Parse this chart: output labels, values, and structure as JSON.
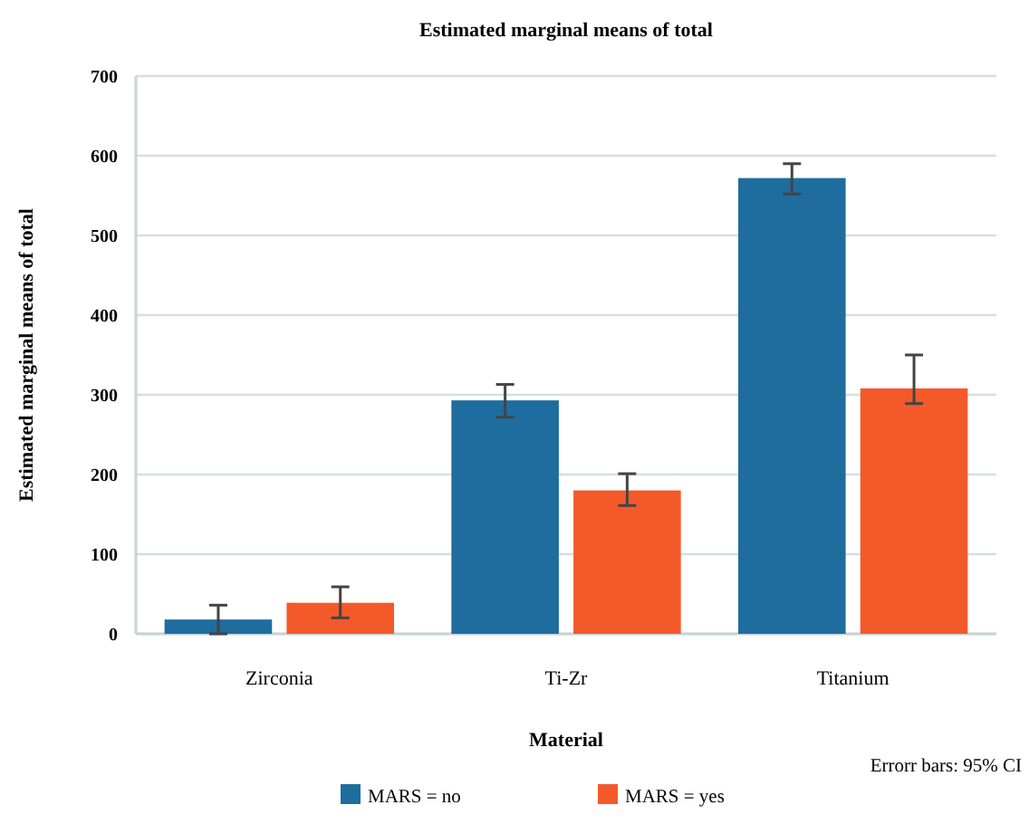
{
  "chart_data": {
    "type": "bar",
    "title": "Estimated marginal means of total",
    "xlabel": "Material",
    "ylabel": "Estimated marginal means of total",
    "annotations": [
      "Errorr bars: 95% CI"
    ],
    "categories": [
      "Zirconia",
      "Ti-Zr",
      "Titanium"
    ],
    "series": [
      {
        "name": "MARS = no",
        "color": "#1f6d9e",
        "values": [
          18,
          293,
          572
        ],
        "errors": [
          [
            0,
            36
          ],
          [
            272,
            313
          ],
          [
            552,
            590
          ]
        ]
      },
      {
        "name": "MARS = yes",
        "color": "#f4592a",
        "values": [
          39,
          180,
          308
        ],
        "errors": [
          [
            20,
            59
          ],
          [
            161,
            201
          ],
          [
            289,
            350
          ]
        ]
      }
    ],
    "ylim": [
      0,
      700
    ],
    "yticks": [
      0,
      100,
      200,
      300,
      400,
      500,
      600,
      700
    ],
    "grid": "y",
    "legend": "bottom"
  }
}
